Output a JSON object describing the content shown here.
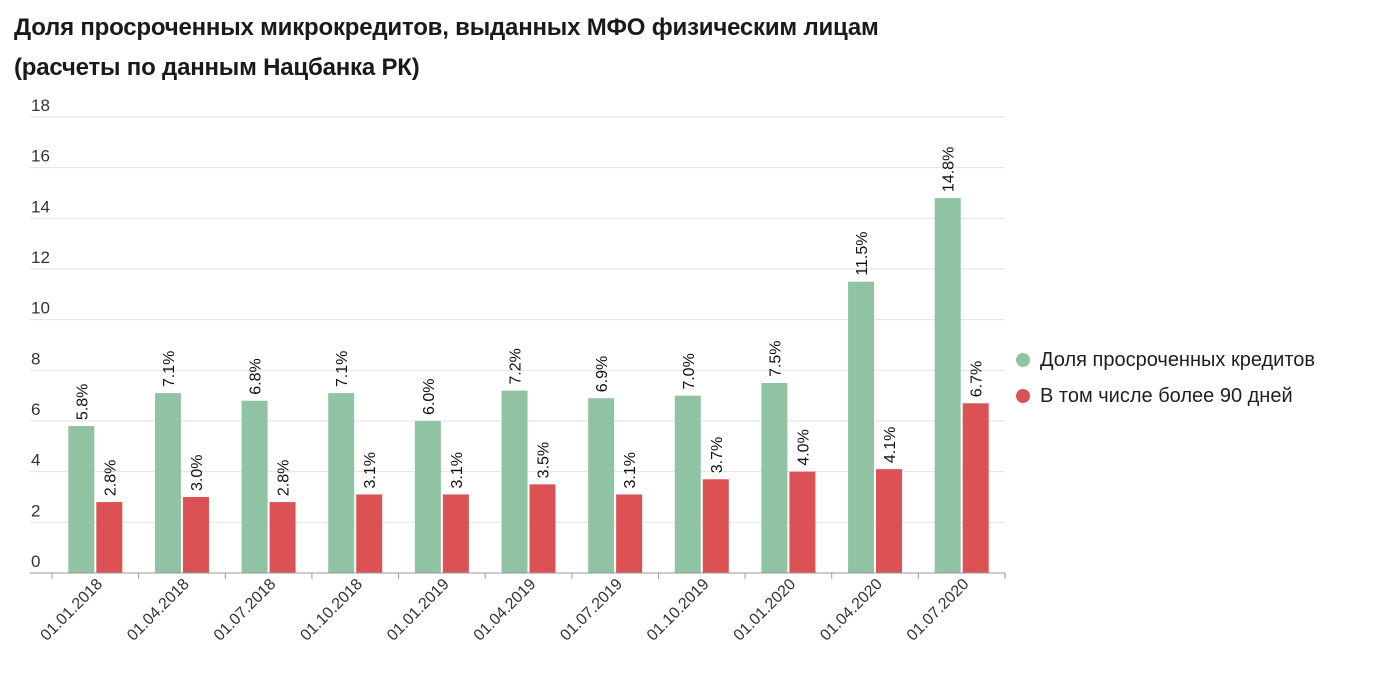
{
  "title": {
    "line1": "Доля просроченных микрокредитов, выданных МФО физическим лицам",
    "line2": "(расчеты по данным Нацбанка РК)"
  },
  "legend": {
    "items": [
      {
        "label": "Доля просроченных кредитов",
        "color": "#8fc3a4"
      },
      {
        "label": "В том числе более 90 дней",
        "color": "#dc5154"
      }
    ],
    "placement": "right"
  },
  "chart_data": {
    "type": "bar",
    "title": "Доля просроченных микрокредитов, выданных МФО физическим лицам (расчеты по данным Нацбанка РК)",
    "xlabel": "",
    "ylabel": "",
    "ylim": [
      0,
      18
    ],
    "yticks": [
      0,
      2,
      4,
      6,
      8,
      10,
      12,
      14,
      16,
      18
    ],
    "grid": true,
    "categories": [
      "01.01.2018",
      "01.04.2018",
      "01.07.2018",
      "01.10.2018",
      "01.01.2019",
      "01.04.2019",
      "01.07.2019",
      "01.10.2019",
      "01.01.2020",
      "01.04.2020",
      "01.07.2020"
    ],
    "series": [
      {
        "name": "Доля просроченных кредитов",
        "color": "#8fc3a4",
        "values": [
          5.8,
          7.1,
          6.8,
          7.1,
          6.0,
          7.2,
          6.9,
          7.0,
          7.5,
          11.5,
          14.8
        ],
        "labels": [
          "5.8%",
          "7.1%",
          "6.8%",
          "7.1%",
          "6.0%",
          "7.2%",
          "6.9%",
          "7.0%",
          "7.5%",
          "11.5%",
          "14.8%"
        ]
      },
      {
        "name": "В том числе более 90 дней",
        "color": "#dc5154",
        "values": [
          2.8,
          3.0,
          2.8,
          3.1,
          3.1,
          3.5,
          3.1,
          3.7,
          4.0,
          4.1,
          6.7
        ],
        "labels": [
          "2.8%",
          "3.0%",
          "2.8%",
          "3.1%",
          "3.1%",
          "3.5%",
          "3.1%",
          "3.7%",
          "4.0%",
          "4.1%",
          "6.7%"
        ]
      }
    ]
  }
}
